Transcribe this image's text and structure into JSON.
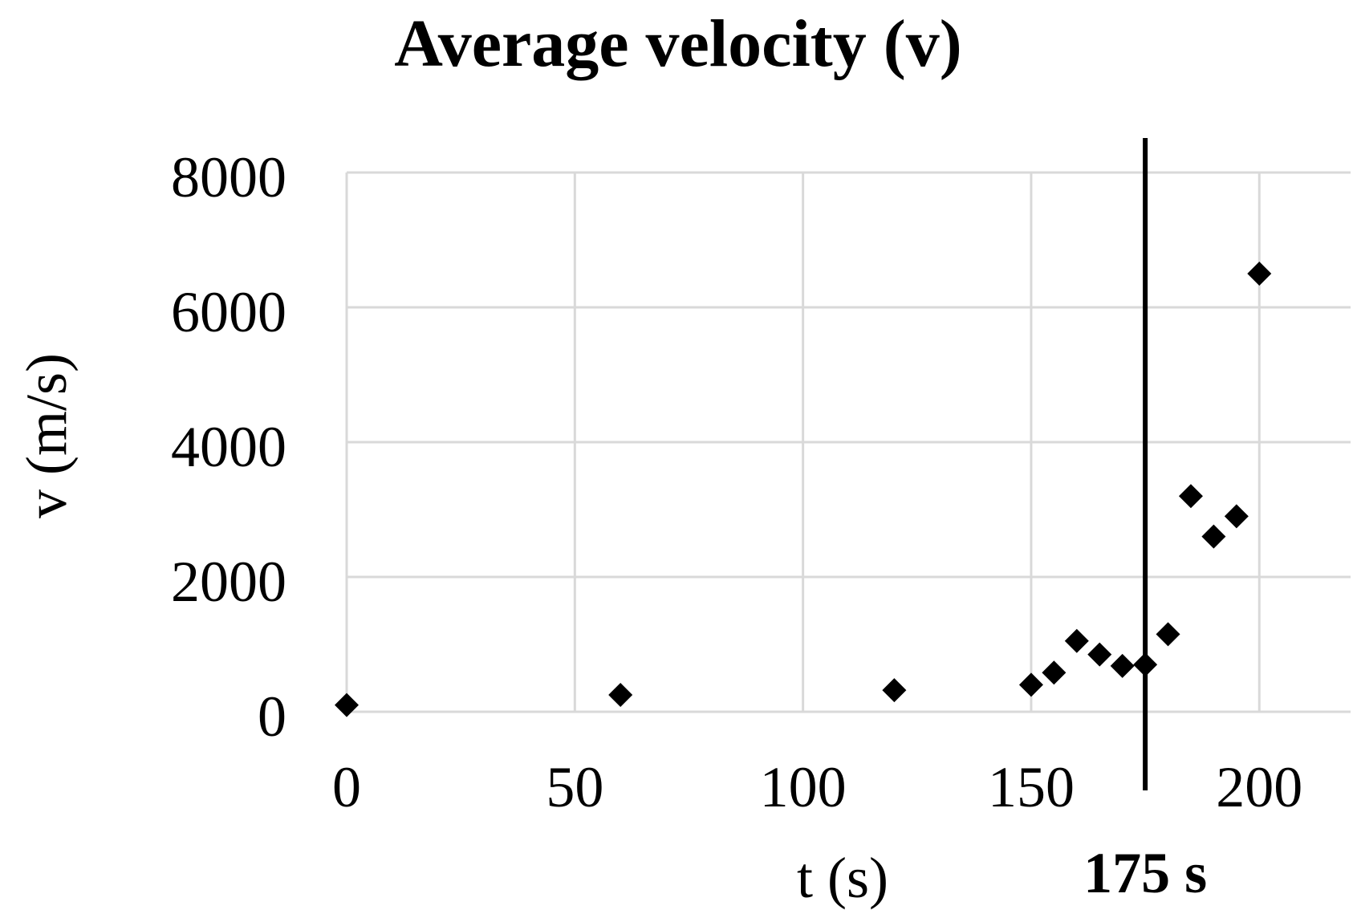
{
  "chart_data": {
    "type": "scatter",
    "title": "Average velocity (v)",
    "xlabel": "t (s)",
    "ylabel": "v (m/s)",
    "xlim": [
      0,
      220
    ],
    "ylim": [
      0,
      8000
    ],
    "x_ticks": [
      0,
      50,
      100,
      150,
      200
    ],
    "y_ticks": [
      0,
      2000,
      4000,
      6000,
      8000
    ],
    "grid": true,
    "series": [
      {
        "name": "v",
        "marker": "diamond",
        "color": "#000000",
        "x": [
          0,
          60,
          120,
          150,
          155,
          160,
          165,
          170,
          175,
          180,
          185,
          190,
          195,
          200
        ],
        "y": [
          100,
          250,
          320,
          400,
          580,
          1050,
          850,
          680,
          700,
          1150,
          3200,
          2600,
          2900,
          6500
        ]
      }
    ],
    "annotation": {
      "type": "vertical-line",
      "x": 175,
      "label": "175 s",
      "color": "#000000"
    }
  }
}
